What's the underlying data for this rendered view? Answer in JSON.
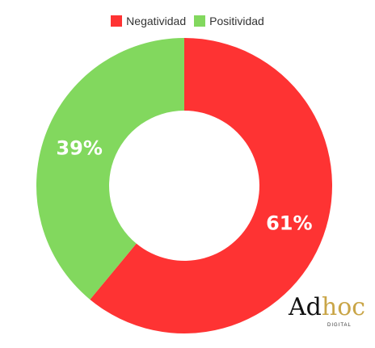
{
  "chart_data": {
    "type": "pie",
    "donut": true,
    "legend_position": "top",
    "slices": [
      {
        "name": "Negatividad",
        "value": 61,
        "label": "61%",
        "color": "#fe3333"
      },
      {
        "name": "Positividad",
        "value": 39,
        "label": "39%",
        "color": "#82d85e"
      }
    ]
  },
  "logo": {
    "main_left": "Ad",
    "main_right": "hoc",
    "sub": "DIGITAL"
  }
}
